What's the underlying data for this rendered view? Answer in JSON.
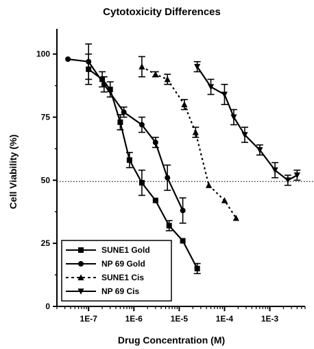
{
  "chart_data": {
    "type": "line",
    "title": "Cytotoxicity Differences",
    "xlabel": "Drug Concentration (M)",
    "ylabel": "Cell Viability (%)",
    "x_scale": "log",
    "xlim": [
      2e-08,
      0.006
    ],
    "ylim": [
      0,
      110
    ],
    "x_ticks": [
      1e-07,
      1e-06,
      1e-05,
      0.0001,
      0.001
    ],
    "x_tick_labels": [
      "1E-7",
      "1E-6",
      "1E-5",
      "1E-4",
      "1E-3"
    ],
    "y_ticks": [
      0,
      25,
      50,
      75,
      100
    ],
    "y_tick_labels": [
      "0",
      "25",
      "50",
      "75",
      "100"
    ],
    "reference_line": {
      "y": 49.5,
      "style": "dotted"
    },
    "legend_position": "bottom-left",
    "series": [
      {
        "name": "SUNE1 Gold",
        "marker": "square",
        "line": "solid",
        "x": [
          1e-07,
          2e-07,
          3e-07,
          5e-07,
          8e-07,
          1.5e-06,
          3e-06,
          6e-06,
          1.2e-05,
          2.5e-05
        ],
        "y": [
          94,
          90,
          86,
          73,
          58,
          49,
          42,
          32,
          26,
          15
        ],
        "err": [
          6,
          3,
          3,
          3,
          3,
          5,
          0,
          2,
          0,
          2
        ]
      },
      {
        "name": "NP 69 Gold",
        "marker": "circle",
        "line": "solid",
        "x": [
          3.5e-08,
          1e-07,
          2.2e-07,
          6e-07,
          1.5e-06,
          3e-06,
          5.5e-06,
          1.2e-05
        ],
        "y": [
          98,
          97,
          88,
          77,
          72,
          65,
          51,
          38
        ],
        "err": [
          0,
          7,
          3,
          2,
          3,
          2,
          5,
          5
        ]
      },
      {
        "name": "SUNE1 Cis",
        "marker": "triangle-up",
        "line": "dotted",
        "x": [
          1.5e-06,
          3e-06,
          5.5e-06,
          1.3e-05,
          2.3e-05,
          4.5e-05,
          0.0001,
          0.00018
        ],
        "y": [
          95,
          92,
          90,
          80,
          69,
          48,
          42,
          35
        ],
        "err": [
          4,
          1,
          2,
          2,
          2,
          0,
          0,
          0
        ]
      },
      {
        "name": "NP 69 Cis",
        "marker": "triangle-down",
        "line": "solid",
        "x": [
          2.5e-05,
          5e-05,
          0.0001,
          0.00016,
          0.00028,
          0.0006,
          0.0013,
          0.0025,
          0.004
        ],
        "y": [
          95,
          87,
          84,
          75,
          68,
          62,
          54,
          50,
          52
        ],
        "err": [
          2,
          3,
          4,
          3,
          3,
          2,
          3,
          2,
          2
        ]
      }
    ]
  }
}
